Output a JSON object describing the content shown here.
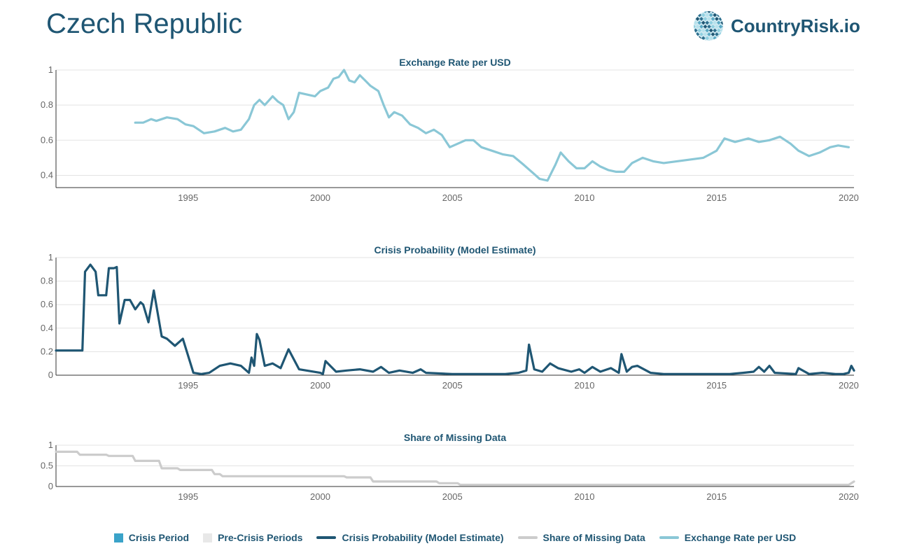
{
  "header": {
    "title": "Czech Republic",
    "brand": "CountryRisk.io"
  },
  "colors": {
    "exchange": "#8ac7d6",
    "crisis_prob": "#1f5673",
    "missing": "#cccccc",
    "crisis_period": "#3aa3c9",
    "pre_crisis": "#e8e8e8",
    "text": "#1f5673",
    "tick": "#666666"
  },
  "legend": [
    {
      "label": "Crisis Period",
      "kind": "box",
      "color": "#3aa3c9"
    },
    {
      "label": "Pre-Crisis Periods",
      "kind": "box",
      "color": "#e8e8e8"
    },
    {
      "label": "Crisis Probability (Model Estimate)",
      "kind": "line",
      "color": "#1f5673"
    },
    {
      "label": "Share of Missing Data",
      "kind": "line",
      "color": "#cccccc"
    },
    {
      "label": "Exchange Rate per USD",
      "kind": "line",
      "color": "#8ac7d6"
    }
  ],
  "chart_data": [
    {
      "type": "line",
      "title": "Exchange Rate per USD",
      "xlim": [
        1990.0,
        2020.2
      ],
      "ylim": [
        0.33,
        1.0
      ],
      "xticks": [
        1995,
        2000,
        2005,
        2010,
        2015,
        2020
      ],
      "yticks": [
        {
          "v": 0.4,
          "label": "0.4"
        },
        {
          "v": 0.6,
          "label": "0.6"
        },
        {
          "v": 0.8,
          "label": "0.8"
        },
        {
          "v": 1.0,
          "label": "1"
        }
      ],
      "series": [
        {
          "color": "#8ac7d6",
          "x": [
            1993.0,
            1993.3,
            1993.6,
            1993.8,
            1994.2,
            1994.6,
            1994.9,
            1995.2,
            1995.6,
            1996.0,
            1996.4,
            1996.7,
            1997.0,
            1997.3,
            1997.5,
            1997.7,
            1997.9,
            1998.2,
            1998.4,
            1998.6,
            1998.8,
            1999.0,
            1999.2,
            1999.5,
            1999.8,
            2000.0,
            2000.3,
            2000.5,
            2000.7,
            2000.9,
            2001.1,
            2001.3,
            2001.5,
            2001.7,
            2001.9,
            2002.2,
            2002.4,
            2002.6,
            2002.8,
            2003.1,
            2003.4,
            2003.7,
            2004.0,
            2004.3,
            2004.6,
            2004.9,
            2005.2,
            2005.5,
            2005.8,
            2006.1,
            2006.5,
            2006.9,
            2007.3,
            2007.7,
            2008.0,
            2008.3,
            2008.6,
            2008.9,
            2009.1,
            2009.4,
            2009.7,
            2010.0,
            2010.3,
            2010.6,
            2010.9,
            2011.2,
            2011.5,
            2011.8,
            2012.2,
            2012.6,
            2013.0,
            2013.5,
            2014.0,
            2014.5,
            2015.0,
            2015.3,
            2015.7,
            2016.2,
            2016.6,
            2017.0,
            2017.4,
            2017.8,
            2018.1,
            2018.5,
            2018.9,
            2019.3,
            2019.6,
            2020.0
          ],
          "y": [
            0.7,
            0.7,
            0.72,
            0.71,
            0.73,
            0.72,
            0.69,
            0.68,
            0.64,
            0.65,
            0.67,
            0.65,
            0.66,
            0.72,
            0.8,
            0.83,
            0.8,
            0.85,
            0.82,
            0.8,
            0.72,
            0.76,
            0.87,
            0.86,
            0.85,
            0.88,
            0.9,
            0.95,
            0.96,
            1.0,
            0.94,
            0.93,
            0.97,
            0.94,
            0.91,
            0.88,
            0.8,
            0.73,
            0.76,
            0.74,
            0.69,
            0.67,
            0.64,
            0.66,
            0.63,
            0.56,
            0.58,
            0.6,
            0.6,
            0.56,
            0.54,
            0.52,
            0.51,
            0.46,
            0.42,
            0.38,
            0.37,
            0.46,
            0.53,
            0.48,
            0.44,
            0.44,
            0.48,
            0.45,
            0.43,
            0.42,
            0.42,
            0.47,
            0.5,
            0.48,
            0.47,
            0.48,
            0.49,
            0.5,
            0.54,
            0.61,
            0.59,
            0.61,
            0.59,
            0.6,
            0.62,
            0.58,
            0.54,
            0.51,
            0.53,
            0.56,
            0.57,
            0.56
          ]
        }
      ]
    },
    {
      "type": "line",
      "title": "Crisis Probability (Model Estimate)",
      "xlim": [
        1990.0,
        2020.2
      ],
      "ylim": [
        0,
        1.0
      ],
      "xticks": [
        1995,
        2000,
        2005,
        2010,
        2015,
        2020
      ],
      "yticks": [
        {
          "v": 0,
          "label": "0"
        },
        {
          "v": 0.2,
          "label": "0.2"
        },
        {
          "v": 0.4,
          "label": "0.4"
        },
        {
          "v": 0.6,
          "label": "0.6"
        },
        {
          "v": 0.8,
          "label": "0.8"
        },
        {
          "v": 1.0,
          "label": "1"
        }
      ],
      "series": [
        {
          "color": "#1f5673",
          "x": [
            1990.0,
            1990.8,
            1991.0,
            1991.1,
            1991.3,
            1991.5,
            1991.6,
            1991.9,
            1992.0,
            1992.2,
            1992.3,
            1992.4,
            1992.6,
            1992.8,
            1993.0,
            1993.2,
            1993.3,
            1993.5,
            1993.7,
            1994.0,
            1994.2,
            1994.5,
            1994.8,
            1995.2,
            1995.5,
            1995.8,
            1996.2,
            1996.6,
            1997.0,
            1997.3,
            1997.4,
            1997.5,
            1997.6,
            1997.7,
            1997.9,
            1998.2,
            1998.5,
            1998.8,
            1999.2,
            2000.0,
            2000.1,
            2000.2,
            2000.6,
            2001.0,
            2001.5,
            2002.0,
            2002.3,
            2002.6,
            2003.0,
            2003.5,
            2003.8,
            2004.0,
            2005.0,
            2006.0,
            2007.0,
            2007.5,
            2007.8,
            2007.9,
            2008.1,
            2008.4,
            2008.7,
            2009.0,
            2009.5,
            2009.8,
            2010.0,
            2010.3,
            2010.6,
            2011.0,
            2011.3,
            2011.4,
            2011.6,
            2011.8,
            2012.0,
            2012.5,
            2013.0,
            2014.0,
            2015.0,
            2015.5,
            2016.0,
            2016.4,
            2016.6,
            2016.8,
            2017.0,
            2017.2,
            2018.0,
            2018.1,
            2018.5,
            2019.0,
            2019.5,
            2019.8,
            2020.0,
            2020.1,
            2020.2
          ],
          "y": [
            0.21,
            0.21,
            0.21,
            0.88,
            0.94,
            0.88,
            0.68,
            0.68,
            0.91,
            0.91,
            0.92,
            0.44,
            0.64,
            0.64,
            0.56,
            0.62,
            0.6,
            0.45,
            0.72,
            0.33,
            0.31,
            0.25,
            0.31,
            0.02,
            0.01,
            0.02,
            0.08,
            0.1,
            0.08,
            0.02,
            0.15,
            0.08,
            0.35,
            0.3,
            0.08,
            0.1,
            0.06,
            0.22,
            0.05,
            0.02,
            0.01,
            0.12,
            0.03,
            0.04,
            0.05,
            0.03,
            0.07,
            0.02,
            0.04,
            0.02,
            0.05,
            0.02,
            0.01,
            0.01,
            0.01,
            0.02,
            0.04,
            0.26,
            0.05,
            0.03,
            0.1,
            0.06,
            0.03,
            0.05,
            0.02,
            0.07,
            0.03,
            0.06,
            0.02,
            0.18,
            0.03,
            0.07,
            0.08,
            0.02,
            0.01,
            0.01,
            0.01,
            0.01,
            0.02,
            0.03,
            0.07,
            0.03,
            0.08,
            0.02,
            0.01,
            0.06,
            0.01,
            0.02,
            0.01,
            0.01,
            0.02,
            0.08,
            0.04
          ]
        }
      ]
    },
    {
      "type": "line",
      "title": "Share of Missing Data",
      "xlim": [
        1990.0,
        2020.2
      ],
      "ylim": [
        0,
        1.0
      ],
      "xticks": [
        1995,
        2000,
        2005,
        2010,
        2015,
        2020
      ],
      "yticks": [
        {
          "v": 0,
          "label": "0"
        },
        {
          "v": 0.5,
          "label": "0.5"
        },
        {
          "v": 1.0,
          "label": "1"
        }
      ],
      "series": [
        {
          "color": "#cccccc",
          "x": [
            1990.0,
            1990.8,
            1990.9,
            1991.9,
            1992.0,
            1992.9,
            1993.0,
            1993.9,
            1994.0,
            1994.6,
            1994.7,
            1995.9,
            1996.0,
            1996.2,
            1996.3,
            2000.9,
            2001.0,
            2001.9,
            2002.0,
            2004.4,
            2004.5,
            2005.2,
            2005.3,
            2020.0,
            2020.2
          ],
          "y": [
            0.84,
            0.84,
            0.77,
            0.77,
            0.74,
            0.74,
            0.62,
            0.62,
            0.44,
            0.44,
            0.4,
            0.4,
            0.3,
            0.3,
            0.25,
            0.25,
            0.22,
            0.22,
            0.12,
            0.12,
            0.08,
            0.08,
            0.04,
            0.04,
            0.12
          ]
        }
      ]
    }
  ]
}
